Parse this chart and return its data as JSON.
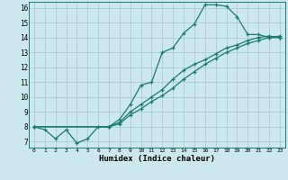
{
  "xlabel": "Humidex (Indice chaleur)",
  "bg_color": "#cce8ec",
  "grid_color": "#aaccd0",
  "line_color": "#1a7a6e",
  "xlim": [
    -0.5,
    23.5
  ],
  "ylim": [
    6.6,
    16.4
  ],
  "yticks": [
    7,
    8,
    9,
    10,
    11,
    12,
    13,
    14,
    15,
    16
  ],
  "xticks": [
    0,
    1,
    2,
    3,
    4,
    5,
    6,
    7,
    8,
    9,
    10,
    11,
    12,
    13,
    14,
    15,
    16,
    17,
    18,
    19,
    20,
    21,
    22,
    23
  ],
  "line1_x": [
    0,
    1,
    2,
    3,
    4,
    5,
    6,
    7,
    8,
    9,
    10,
    11,
    12,
    13,
    14,
    15,
    16,
    17,
    18,
    19,
    20,
    21,
    22,
    23
  ],
  "line1_y": [
    8.0,
    7.8,
    7.2,
    7.8,
    6.9,
    7.2,
    8.0,
    8.0,
    8.5,
    9.5,
    10.8,
    11.0,
    13.0,
    13.3,
    14.3,
    14.9,
    16.2,
    16.2,
    16.1,
    15.4,
    14.2,
    14.2,
    14.0,
    14.1
  ],
  "line2_x": [
    0,
    7,
    8,
    9,
    10,
    11,
    12,
    13,
    14,
    15,
    16,
    17,
    18,
    19,
    20,
    21,
    22,
    23
  ],
  "line2_y": [
    8.0,
    8.0,
    8.3,
    9.0,
    9.5,
    10.0,
    10.5,
    11.2,
    11.8,
    12.2,
    12.5,
    12.9,
    13.3,
    13.5,
    13.8,
    14.0,
    14.1,
    14.0
  ],
  "line3_x": [
    0,
    7,
    8,
    9,
    10,
    11,
    12,
    13,
    14,
    15,
    16,
    17,
    18,
    19,
    20,
    21,
    22,
    23
  ],
  "line3_y": [
    8.0,
    8.0,
    8.2,
    8.8,
    9.2,
    9.7,
    10.1,
    10.6,
    11.2,
    11.7,
    12.2,
    12.6,
    13.0,
    13.3,
    13.6,
    13.8,
    14.0,
    14.0
  ]
}
